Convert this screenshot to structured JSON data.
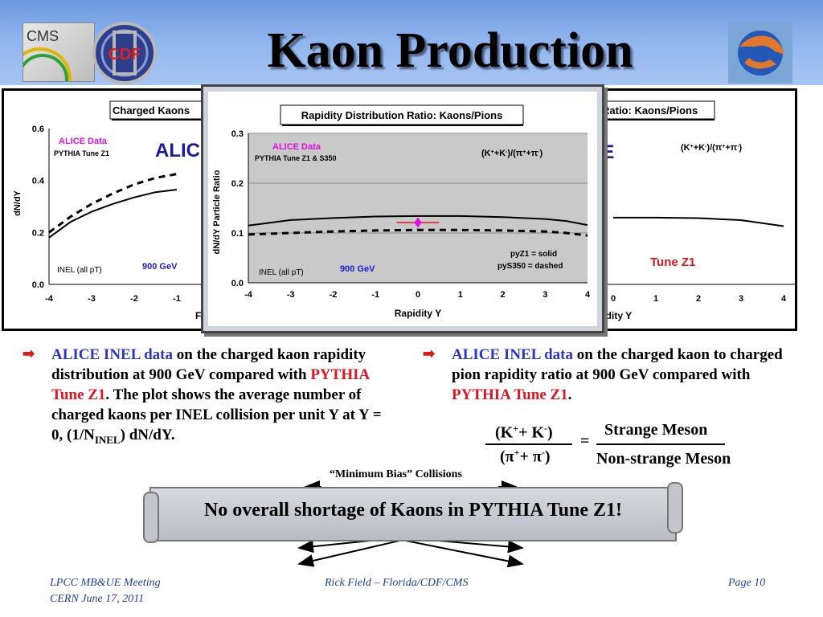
{
  "header": {
    "title": "Kaon Production",
    "logos": {
      "cms": "CMS",
      "cdf": "CDF"
    },
    "colors": {
      "band": "#8fb5ee"
    }
  },
  "bg_left_heading": "ALIC",
  "bg_right_heading": "CE",
  "chart_data": [
    {
      "type": "line",
      "title": "Charged Kaons",
      "xlabel": "F",
      "ylabel": "dN/dY",
      "xlim": [
        -4,
        4
      ],
      "ylim": [
        0.0,
        0.6
      ],
      "x_ticks": [
        "-4",
        "-3",
        "-2",
        "-1"
      ],
      "y_ticks": [
        "0.0",
        "0.2",
        "0.4",
        "0.6"
      ],
      "annotations": {
        "data_label": "ALICE Data",
        "tune": "PYTHIA Tune Z1",
        "inel": "INEL (all pT)",
        "energy": "900 GeV"
      },
      "series": [
        {
          "style": "solid",
          "x": [
            -4,
            -3.5,
            -3,
            -2.5,
            -2,
            -1.5,
            -1
          ],
          "values": [
            0.18,
            0.24,
            0.28,
            0.31,
            0.335,
            0.355,
            0.365
          ]
        },
        {
          "style": "dashed",
          "x": [
            -4,
            -3.5,
            -3,
            -2.5,
            -2,
            -1.5,
            -1
          ],
          "values": [
            0.2,
            0.26,
            0.31,
            0.35,
            0.385,
            0.41,
            0.425
          ]
        }
      ]
    },
    {
      "type": "line",
      "title": "Rapidity Distribution Ratio: Kaons/Pions",
      "xlabel": "Rapidity Y",
      "ylabel": "dN/dY Particle Ratio",
      "xlim": [
        -4,
        4
      ],
      "ylim": [
        0.0,
        0.3
      ],
      "x_ticks": [
        "-4",
        "-3",
        "-2",
        "-1",
        "0",
        "1",
        "2",
        "3",
        "4"
      ],
      "y_ticks": [
        "0.0",
        "0.1",
        "0.2",
        "0.3"
      ],
      "annotations": {
        "data_label": "ALICE Data",
        "tune": "PYTHIA Tune Z1 & S350",
        "ratio": "(K++K-)/(π++π-)",
        "ratio_parts": [
          "(K",
          "+",
          "+K",
          "-",
          ")/(π",
          "+",
          "+π",
          "-",
          ")"
        ],
        "inel": "INEL (all pT)",
        "energy": "900 GeV",
        "legend1": "pyZ1 = solid",
        "legend2": "pyS350 = dashed"
      },
      "points": [
        {
          "x": 0,
          "y": 0.121,
          "xerr": 0.5
        }
      ],
      "series": [
        {
          "name": "pyZ1",
          "style": "solid",
          "x": [
            -4,
            -3,
            -2,
            -1,
            0,
            1,
            2,
            3,
            3.5,
            4
          ],
          "values": [
            0.115,
            0.126,
            0.13,
            0.133,
            0.134,
            0.134,
            0.132,
            0.128,
            0.124,
            0.116
          ]
        },
        {
          "name": "pyS350",
          "style": "dashed",
          "x": [
            -4,
            -3,
            -2,
            -1,
            0,
            1,
            2,
            3,
            3.5,
            4
          ],
          "values": [
            0.097,
            0.1,
            0.103,
            0.105,
            0.106,
            0.106,
            0.105,
            0.103,
            0.1,
            0.095
          ]
        }
      ]
    },
    {
      "type": "line",
      "title": "Ratio: Kaons/Pions",
      "xlabel": "pidity Y",
      "ylabel": "",
      "xlim": [
        -4,
        4
      ],
      "x_ticks": [
        "0",
        "1",
        "2",
        "3",
        "4"
      ],
      "annotations": {
        "ratio_parts": [
          "(K",
          "+",
          "+K",
          "-",
          ")/(π",
          "+",
          "+π",
          "-",
          ")"
        ],
        "tune": "Tune Z1"
      },
      "series": [
        {
          "style": "solid",
          "x": [
            0,
            1,
            2,
            3,
            4
          ],
          "values": [
            0.134,
            0.134,
            0.133,
            0.129,
            0.117
          ]
        }
      ]
    }
  ],
  "bullets": {
    "left": {
      "p1": "ALICE INEL data",
      "p2": " on the charged kaon rapidity distribution at 900 GeV compared with ",
      "p3": "PYTHIA Tune Z1",
      "p4": ".  The plot shows the average number of charged kaons per INEL collision per unit Y at Y = 0, (1/N",
      "p5": "INEL",
      "p6": ") dN/dY."
    },
    "right": {
      "p1": "ALICE INEL data",
      "p2": " on the charged kaon to charged pion rapidity ratio at 900 GeV compared with ",
      "p3": "PYTHIA Tune Z1",
      "p4": "."
    }
  },
  "formula": {
    "numerator": "(K",
    "num_sup1": "+",
    "num_mid": "+ K",
    "num_sup2": "-",
    "num_end": ")",
    "denominator": "(π",
    "den_sup1": "+",
    "den_mid": "+ π",
    "den_sup2": "-",
    "den_end": ")",
    "eq": "=",
    "top": "Strange Meson",
    "bottom": "Non-strange Meson"
  },
  "min_bias": "“Minimum Bias” Collisions",
  "banner": "No overall shortage of Kaons in PYTHIA Tune Z1!",
  "footer": {
    "left1": "LPCC MB&UE Meeting",
    "left2": "CERN June 17, 2011",
    "center": "Rick Field – Florida/CDF/CMS",
    "right": "Page 10"
  }
}
